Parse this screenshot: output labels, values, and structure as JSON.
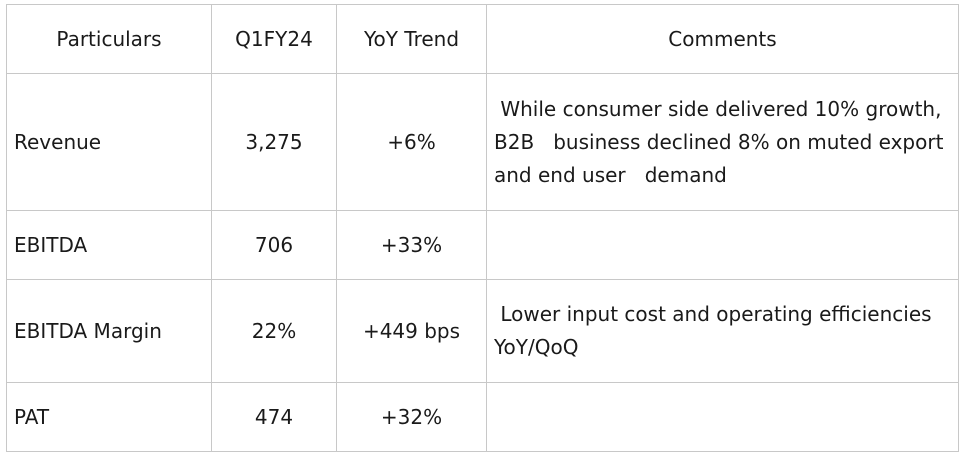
{
  "table": {
    "headers": [
      "Particulars",
      "Q1FY24",
      "YoY Trend",
      "Comments"
    ],
    "rows": [
      {
        "particular": "Revenue",
        "value": "3,275",
        "trend": "+6%",
        "comment": " While consumer side delivered 10% growth, B2B   business declined 8% on muted export and end user   demand"
      },
      {
        "particular": "EBITDA",
        "value": "706",
        "trend": "+33%",
        "comment": ""
      },
      {
        "particular": "EBITDA Margin",
        "value": "22%",
        "trend": "+449 bps",
        "comment": " Lower input cost and operating efficiencies YoY/QoQ"
      },
      {
        "particular": "PAT",
        "value": "474",
        "trend": "+32%",
        "comment": ""
      }
    ]
  }
}
